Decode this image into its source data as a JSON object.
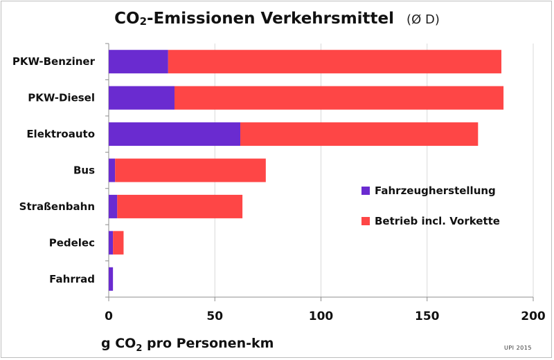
{
  "title": {
    "main_prefix": "CO",
    "main_sub": "2",
    "main_suffix": "-Emissionen Verkehrsmittel",
    "note": "(Ø D)"
  },
  "x_axis_label": {
    "prefix": "g CO",
    "sub": "2",
    "suffix": " pro Personen-km"
  },
  "credit": "UPI 2015",
  "colors": {
    "Fahrzeugherstellung": "#6a2bd0",
    "Betrieb incl. Vorkette": "#fe4646",
    "grid": "#d9d9d9",
    "axis": "#8c8c8c"
  },
  "chart_data": {
    "type": "bar",
    "orientation": "horizontal",
    "stacked": true,
    "categories": [
      "PKW-Benziner",
      "PKW-Diesel",
      "Elektroauto",
      "Bus",
      "Straßenbahn",
      "Pedelec",
      "Fahrrad"
    ],
    "series": [
      {
        "name": "Fahrzeugherstellung",
        "values": [
          28,
          31,
          62,
          3,
          4,
          2,
          2
        ]
      },
      {
        "name": "Betrieb incl. Vorkette",
        "values": [
          157,
          155,
          112,
          71,
          59,
          5,
          0
        ]
      }
    ],
    "xlim": [
      0,
      200
    ],
    "xticks": [
      0,
      50,
      100,
      150,
      200
    ],
    "grid": "vertical",
    "legend": "right"
  }
}
